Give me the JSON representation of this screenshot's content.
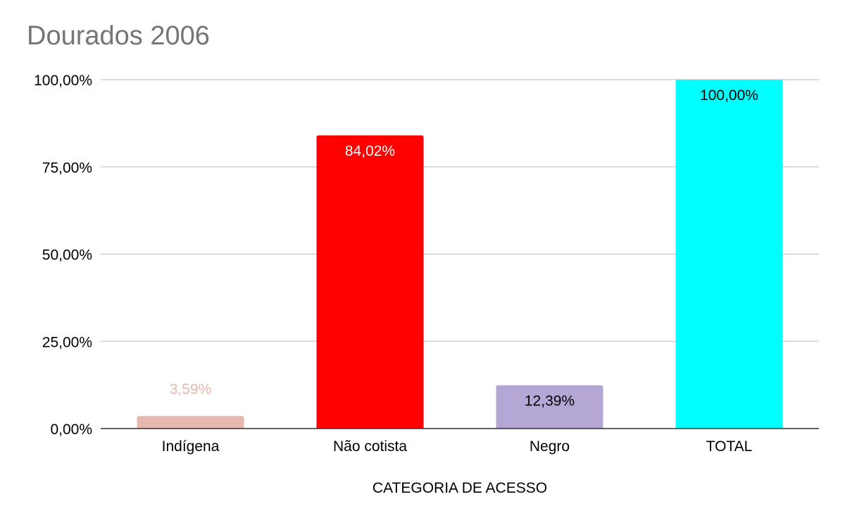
{
  "chart_data": {
    "type": "bar",
    "title": "Dourados 2006",
    "xlabel": "CATEGORIA DE ACESSO",
    "ylabel": "",
    "ylim": [
      0,
      100
    ],
    "yticks": [
      "0,00%",
      "25,00%",
      "50,00%",
      "75,00%",
      "100,00%"
    ],
    "ytick_values": [
      0,
      25,
      50,
      75,
      100
    ],
    "grid": true,
    "categories": [
      "Indígena",
      "Não cotista",
      "Negro",
      "TOTAL"
    ],
    "values": [
      3.59,
      84.02,
      12.39,
      100.0
    ],
    "value_labels": [
      "3,59%",
      "84,02%",
      "12,39%",
      "100,00%"
    ],
    "bar_colors": [
      "#e6b8af",
      "#ff0000",
      "#b4a7d6",
      "#00ffff"
    ],
    "label_colors": [
      "#e6b8af",
      "#ffffff",
      "#000000",
      "#000000"
    ]
  }
}
